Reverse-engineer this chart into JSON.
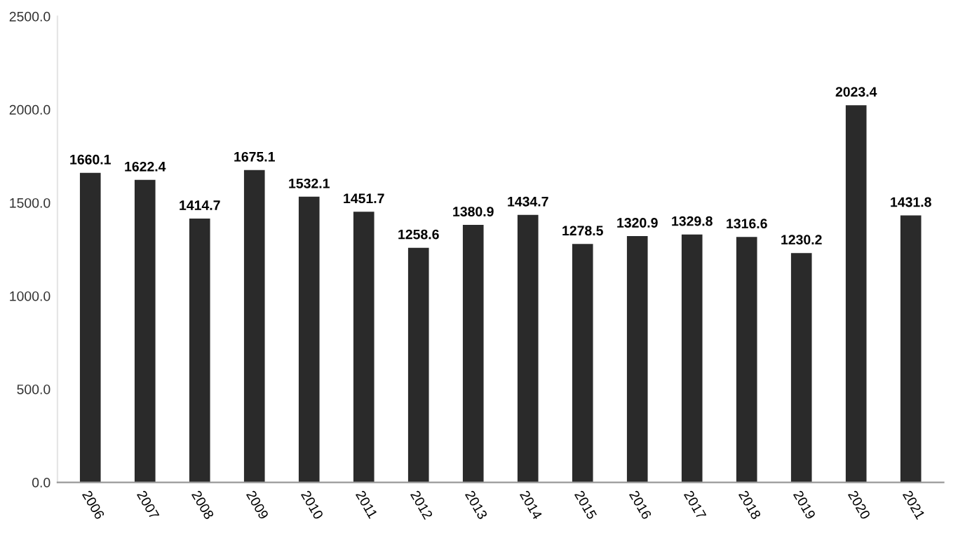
{
  "chart_data": {
    "type": "bar",
    "categories": [
      "2006",
      "2007",
      "2008",
      "2009",
      "2010",
      "2011",
      "2012",
      "2013",
      "2014",
      "2015",
      "2016",
      "2017",
      "2018",
      "2019",
      "2020",
      "2021"
    ],
    "values": [
      1660.1,
      1622.4,
      1414.7,
      1675.1,
      1532.1,
      1451.7,
      1258.6,
      1380.9,
      1434.7,
      1278.5,
      1320.9,
      1329.8,
      1316.6,
      1230.2,
      2023.4,
      1431.8
    ],
    "color": "#2a2a2a",
    "ylim": [
      0,
      2500
    ],
    "yticks": [
      {
        "value": 0,
        "label": "0.0"
      },
      {
        "value": 500,
        "label": "500.0"
      },
      {
        "value": 1000,
        "label": "1000.0"
      },
      {
        "value": 1500,
        "label": "1500.0"
      },
      {
        "value": 2000,
        "label": "2000.0"
      },
      {
        "value": 2500,
        "label": "2500.0"
      }
    ],
    "data_labels": true,
    "grid": false
  }
}
